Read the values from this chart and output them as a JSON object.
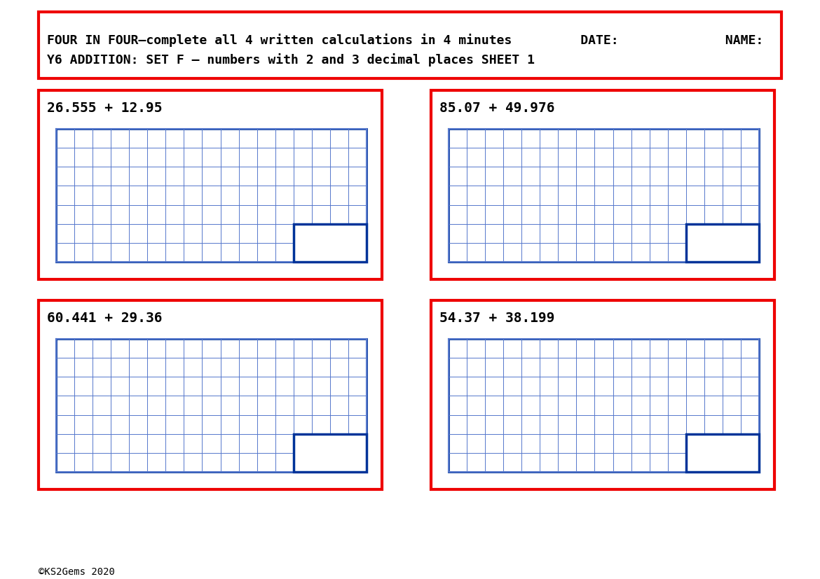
{
  "background_color": "#ffffff",
  "title_line1": "FOUR IN FOUR—complete all 4 written calculations in 4 minutes         DATE:              NAME:",
  "title_line2": "Y6 ADDITION: SET F — numbers with 2 and 3 decimal places SHEET 1",
  "problems": [
    "26.555 + 12.95",
    "85.07 + 49.976",
    "60.441 + 29.36",
    "54.37 + 38.199"
  ],
  "copyright": "©KS2Gems 2020",
  "red_color": "#ee0000",
  "blue_color": "#5577cc",
  "dark_blue": "#003399",
  "title_fontsize": 13,
  "problem_fontsize": 14,
  "copyright_fontsize": 10,
  "grid_rows": 7,
  "grid_cols": 17,
  "answer_rows": 2,
  "answer_cols": 4
}
